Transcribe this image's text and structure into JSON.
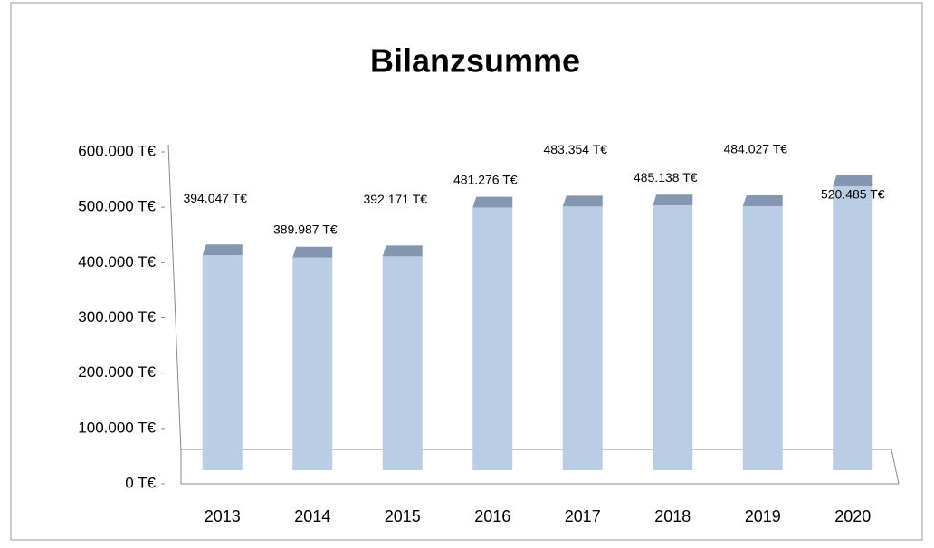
{
  "chart_data": {
    "type": "bar",
    "title": "Bilanzsumme",
    "categories": [
      "2013",
      "2014",
      "2015",
      "2016",
      "2017",
      "2018",
      "2019",
      "2020"
    ],
    "values": [
      394047,
      389987,
      392171,
      481276,
      483354,
      485138,
      484027,
      520485
    ],
    "value_labels": [
      "394.047 T€",
      "389.987 T€",
      "392.171 T€",
      "481.276 T€",
      "483.354 T€",
      "485.138 T€",
      "484.027 T€",
      "520.485 T€"
    ],
    "color": "#b9cde5",
    "ylim": [
      0,
      600000
    ],
    "yticks": [
      {
        "value": 0,
        "label": "0 T€"
      },
      {
        "value": 100000,
        "label": "100.000 T€"
      },
      {
        "value": 200000,
        "label": "200.000 T€"
      },
      {
        "value": 300000,
        "label": "300.000 T€"
      },
      {
        "value": 400000,
        "label": "400.000 T€"
      },
      {
        "value": 500000,
        "label": "500.000 T€"
      },
      {
        "value": 600000,
        "label": "600.000 T€"
      }
    ],
    "grid": false
  }
}
